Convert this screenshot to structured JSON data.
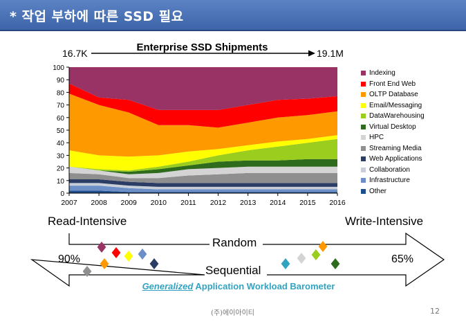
{
  "header": {
    "title": "* 작업 부하에 따른 SSD 필요"
  },
  "shipments": {
    "start": "16.7K",
    "end": "19.1M"
  },
  "chart_data": {
    "type": "area",
    "stacked": true,
    "title": "Enterprise SSD Shipments",
    "xlabel": "",
    "ylabel": "",
    "x": [
      "2007",
      "2008",
      "2009",
      "2010",
      "2011",
      "2012",
      "2013",
      "2014",
      "2015",
      "2016"
    ],
    "ylim": [
      0,
      100
    ],
    "yticks": [
      0,
      10,
      20,
      30,
      40,
      50,
      60,
      70,
      80,
      90,
      100
    ],
    "grid": false,
    "legend_position": "right",
    "series": [
      {
        "name": "Other",
        "color": "#1f4e8c",
        "values": [
          2,
          2,
          1,
          1,
          1,
          1,
          1,
          1,
          1,
          1
        ]
      },
      {
        "name": "Infrastructure",
        "color": "#6d8fc7",
        "values": [
          4,
          4,
          3,
          2,
          2,
          2,
          2,
          2,
          2,
          2
        ]
      },
      {
        "name": "Collaboration",
        "color": "#c8ced8",
        "values": [
          2,
          2,
          2,
          2,
          2,
          2,
          2,
          2,
          2,
          2
        ]
      },
      {
        "name": "Web Applications",
        "color": "#2b3d64",
        "values": [
          3,
          3,
          3,
          3,
          3,
          3,
          3,
          3,
          3,
          3
        ]
      },
      {
        "name": "Streaming Media",
        "color": "#8f8f8f",
        "values": [
          5,
          4,
          3,
          4,
          6,
          7,
          8,
          8,
          8,
          8
        ]
      },
      {
        "name": "HPC",
        "color": "#d4d4d4",
        "values": [
          5,
          3,
          3,
          4,
          5,
          5,
          5,
          5,
          5,
          5
        ]
      },
      {
        "name": "Virtual Desktop",
        "color": "#2f6b1d",
        "values": [
          0,
          0,
          2,
          3,
          3,
          5,
          5,
          5,
          6,
          6
        ]
      },
      {
        "name": "DataWarehousing",
        "color": "#9acd1e",
        "values": [
          0,
          1,
          1,
          2,
          3,
          5,
          8,
          11,
          13,
          16
        ]
      },
      {
        "name": "Email/Messaging",
        "color": "#ffff00",
        "values": [
          13,
          11,
          11,
          9,
          8,
          5,
          4,
          4,
          3,
          3
        ]
      },
      {
        "name": "OLTP Database",
        "color": "#ff9900",
        "values": [
          45,
          40,
          35,
          24,
          21,
          17,
          18,
          19,
          19,
          19
        ]
      },
      {
        "name": "Front End Web",
        "color": "#ff0000",
        "values": [
          8,
          6,
          10,
          12,
          12,
          14,
          14,
          14,
          13,
          12
        ]
      },
      {
        "name": "Indexing",
        "color": "#993366",
        "values": [
          13,
          24,
          26,
          34,
          34,
          34,
          30,
          26,
          25,
          23
        ]
      }
    ]
  },
  "barometer": {
    "read_label": "Read-Intensive",
    "write_label": "Write-Intensive",
    "random_label": "Random",
    "sequential_label": "Sequential",
    "left_pct": "90%",
    "right_pct": "65%",
    "caption_italic": "Generalized",
    "caption_rest": " Application Workload Barometer"
  },
  "footer": {
    "company": "(주)에이아이티",
    "page": "12"
  }
}
